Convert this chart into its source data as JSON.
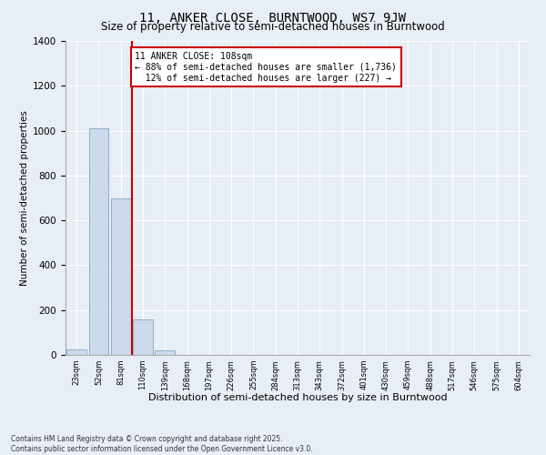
{
  "title": "11, ANKER CLOSE, BURNTWOOD, WS7 9JW",
  "subtitle": "Size of property relative to semi-detached houses in Burntwood",
  "xlabel": "Distribution of semi-detached houses by size in Burntwood",
  "ylabel": "Number of semi-detached properties",
  "bin_labels": [
    "23sqm",
    "52sqm",
    "81sqm",
    "110sqm",
    "139sqm",
    "168sqm",
    "197sqm",
    "226sqm",
    "255sqm",
    "284sqm",
    "313sqm",
    "343sqm",
    "372sqm",
    "401sqm",
    "430sqm",
    "459sqm",
    "488sqm",
    "517sqm",
    "546sqm",
    "575sqm",
    "604sqm"
  ],
  "bar_values": [
    25,
    1010,
    700,
    160,
    20,
    0,
    0,
    0,
    0,
    0,
    0,
    0,
    0,
    0,
    0,
    0,
    0,
    0,
    0,
    0,
    0
  ],
  "bar_color": "#cddaeb",
  "bar_edgecolor": "#8aaecb",
  "vline_color": "#cc0000",
  "ylim": [
    0,
    1400
  ],
  "yticks": [
    0,
    200,
    400,
    600,
    800,
    1000,
    1200,
    1400
  ],
  "annotation_text": "11 ANKER CLOSE: 108sqm\n← 88% of semi-detached houses are smaller (1,736)\n  12% of semi-detached houses are larger (227) →",
  "annotation_box_color": "#cc0000",
  "footer_line1": "Contains HM Land Registry data © Crown copyright and database right 2025.",
  "footer_line2": "Contains public sector information licensed under the Open Government Licence v3.0.",
  "bg_color": "#e8eef5",
  "plot_bg_color": "#e8eef5",
  "title_fontsize": 10,
  "subtitle_fontsize": 8.5,
  "grid_color": "#ffffff"
}
